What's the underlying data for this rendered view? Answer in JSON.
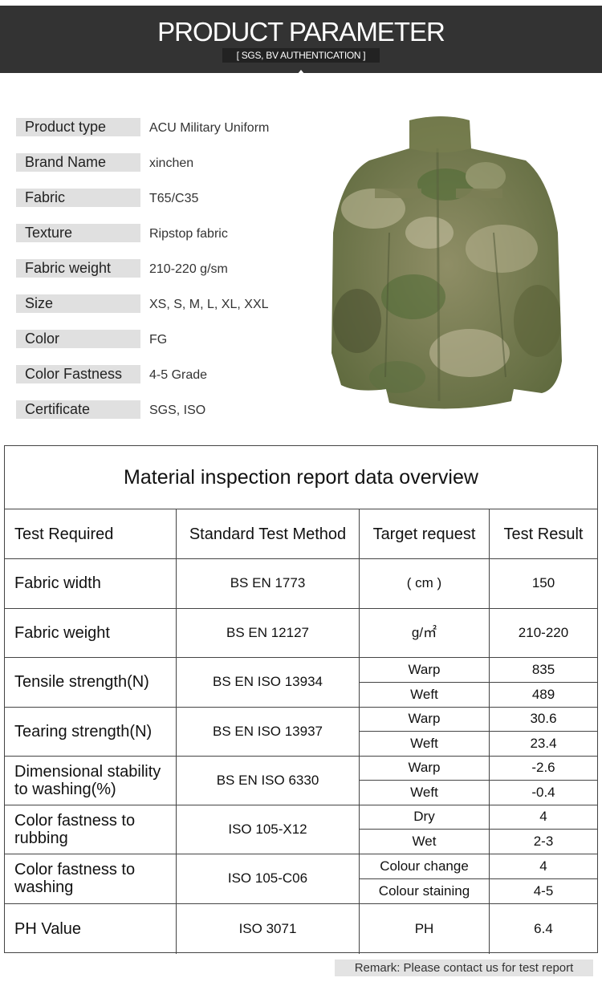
{
  "header": {
    "title": "PRODUCT PARAMETER",
    "subtitle": "[ SGS, BV AUTHENTICATION ]"
  },
  "params": [
    {
      "label": "Product type",
      "value": "ACU Military Uniform"
    },
    {
      "label": "Brand Name",
      "value": "xinchen"
    },
    {
      "label": "Fabric",
      "value": "T65/C35"
    },
    {
      "label": "Texture",
      "value": "Ripstop fabric"
    },
    {
      "label": "Fabric weight",
      "value": "210-220 g/sm"
    },
    {
      "label": "Size",
      "value": "XS, S, M, L, XL, XXL"
    },
    {
      "label": "Color",
      "value": "FG"
    },
    {
      "label": "Color Fastness",
      "value": "4-5 Grade"
    },
    {
      "label": "Certificate",
      "value": "SGS, ISO"
    }
  ],
  "product_image": {
    "icon": "camouflage-jacket-photo",
    "colors": [
      "#6b7548",
      "#9a9a70",
      "#4f6a35",
      "#c0b99a"
    ]
  },
  "report": {
    "title": "Material inspection report data overview",
    "headers": [
      "Test Required",
      "Standard Test Method",
      "Target request",
      "Test Result"
    ],
    "rows": [
      {
        "test": "Fabric width",
        "method": "BS EN 1773",
        "sub": [
          {
            "target": "( cm )",
            "result": "150"
          }
        ]
      },
      {
        "test": "Fabric weight",
        "method": "BS EN 12127",
        "sub": [
          {
            "target": "g/㎡",
            "result": "210-220"
          }
        ]
      },
      {
        "test": "Tensile strength(N)",
        "method": "BS EN ISO 13934",
        "sub": [
          {
            "target": "Warp",
            "result": "835"
          },
          {
            "target": "Weft",
            "result": "489"
          }
        ]
      },
      {
        "test": "Tearing strength(N)",
        "method": "BS EN ISO 13937",
        "sub": [
          {
            "target": "Warp",
            "result": "30.6"
          },
          {
            "target": "Weft",
            "result": "23.4"
          }
        ]
      },
      {
        "test": "Dimensional stability to washing(%)",
        "method": "BS EN ISO 6330",
        "sub": [
          {
            "target": "Warp",
            "result": "-2.6"
          },
          {
            "target": "Weft",
            "result": "-0.4"
          }
        ]
      },
      {
        "test": "Color fastness to rubbing",
        "method": "ISO 105-X12",
        "sub": [
          {
            "target": "Dry",
            "result": "4"
          },
          {
            "target": "Wet",
            "result": "2-3"
          }
        ]
      },
      {
        "test": "Color fastness to washing",
        "method": "ISO 105-C06",
        "sub": [
          {
            "target": "Colour change",
            "result": "4"
          },
          {
            "target": "Colour staining",
            "result": "4-5"
          }
        ]
      },
      {
        "test": "PH Value",
        "method": "ISO 3071",
        "sub": [
          {
            "target": "PH",
            "result": "6.4"
          }
        ]
      }
    ]
  },
  "remark": "Remark: Please contact us for test report"
}
